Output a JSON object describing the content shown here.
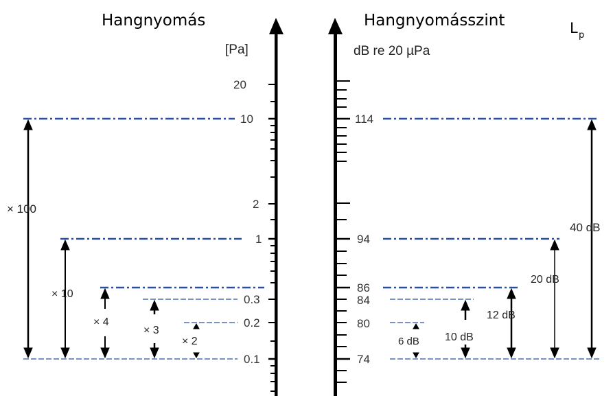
{
  "left_panel": {
    "title": "Hangnyomás",
    "unit": "[Pa]",
    "tick_labels": [
      "20",
      "10",
      "2",
      "1",
      "0.3",
      "0.2",
      "0.1"
    ],
    "ratio_labels": [
      "× 100",
      "× 10",
      "× 4",
      "× 3",
      "× 2"
    ]
  },
  "right_panel": {
    "title": "Hangnyomásszint",
    "symbol": "L",
    "symbol_sub": "p",
    "unit": "dB re 20 µPa",
    "tick_labels": [
      "114",
      "94",
      "86",
      "84",
      "80",
      "74"
    ],
    "difference_labels": [
      "40 dB",
      "20 dB",
      "12 dB",
      "10 dB",
      "6 dB"
    ]
  },
  "colors": {
    "dashed_line": "#2a4fa0",
    "axis": "#000000"
  }
}
